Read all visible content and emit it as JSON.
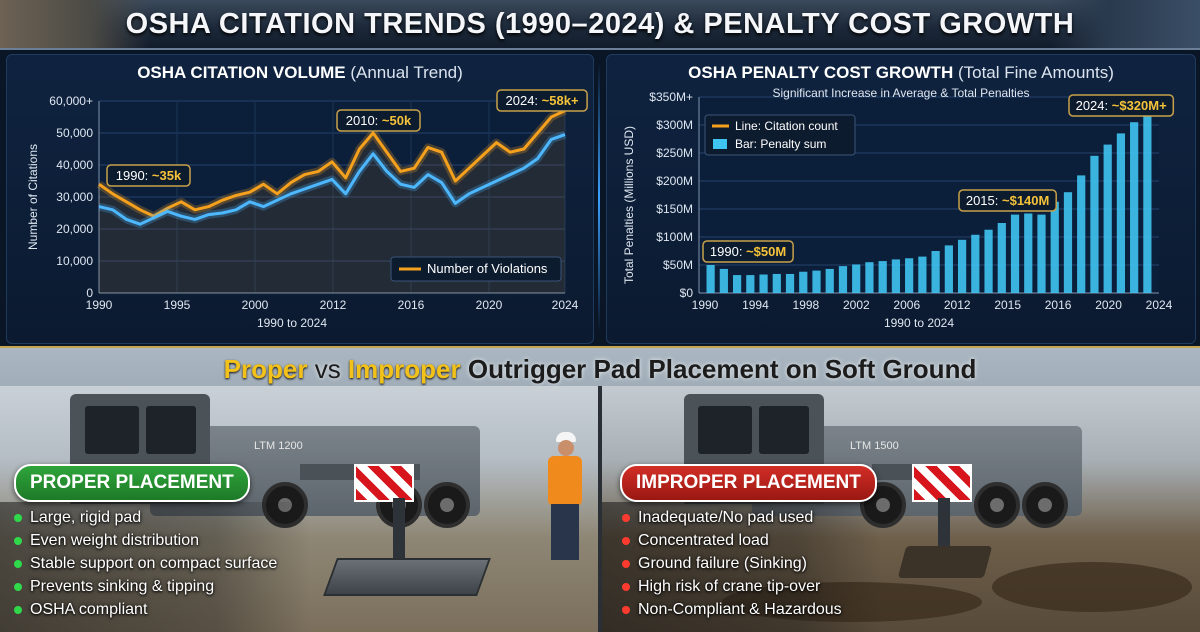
{
  "header": {
    "title": "OSHA CITATION TRENDS (1990–2024) & PENALTY COST GROWTH"
  },
  "colors": {
    "orange_line": "#f5a11e",
    "blue_line": "#4db8ff",
    "bar": "#3fc4f2",
    "proper_green": "#2fa43b",
    "improper_red": "#d22e26",
    "accent_yellow": "#f3c21a"
  },
  "left_chart": {
    "title_bold": "OSHA CITATION VOLUME",
    "title_sub": "(Annual Trend)",
    "ylabel": "Number of Citations",
    "xlabel": "1990 to 2024",
    "legend": "Number of Violations",
    "callouts": [
      "1990: ~35k",
      "2010: ~50k",
      "2024: ~58k+"
    ]
  },
  "right_chart": {
    "title_bold": "OSHA PENALTY COST GROWTH",
    "title_sub": "(Total Fine Amounts)",
    "subtitle": "Significant Increase in Average & Total Penalties",
    "ylabel": "Total Penalties (Millions USD)",
    "xlabel": "1990 to 2024",
    "legend": [
      "Line: Citation count",
      "Bar: Penalty sum"
    ],
    "callouts": [
      "1990: ~$50M",
      "2015: ~$140M",
      "2024: ~$320M+"
    ]
  },
  "chart_data": [
    {
      "type": "line",
      "title": "OSHA CITATION VOLUME (Annual Trend)",
      "xlabel": "1990 to 2024",
      "ylabel": "Number of Citations",
      "xlim": [
        1990,
        2024
      ],
      "ylim": [
        0,
        60000
      ],
      "x_ticks": [
        "1990",
        "1995",
        "2000",
        "2012",
        "2016",
        "2020",
        "2024"
      ],
      "y_ticks": [
        "0",
        "10,000",
        "20,000",
        "30,000",
        "40,000",
        "50,000",
        "60,000+"
      ],
      "grid": true,
      "legend_position": "bottom-right",
      "series": [
        {
          "name": "Number of Violations",
          "color": "#f5a11e",
          "values": [
            34000,
            31000,
            28500,
            26000,
            24000,
            26500,
            28500,
            26000,
            27000,
            29000,
            30500,
            31500,
            34000,
            31000,
            34500,
            37000,
            38000,
            41000,
            36000,
            45000,
            50000,
            44000,
            38000,
            39000,
            45500,
            44000,
            35000,
            39000,
            43000,
            47000,
            44000,
            45000,
            50000,
            55000,
            57000
          ]
        },
        {
          "color": "#4db8ff",
          "values": [
            27000,
            26000,
            23000,
            21500,
            23500,
            25500,
            24000,
            23000,
            24500,
            25000,
            26000,
            28500,
            27000,
            29000,
            31000,
            32500,
            34000,
            35500,
            31000,
            38000,
            43500,
            38000,
            34000,
            33000,
            37000,
            34500,
            28000,
            31000,
            33000,
            35000,
            37000,
            39000,
            42000,
            48000,
            49500
          ]
        }
      ]
    },
    {
      "type": "bar",
      "title": "OSHA PENALTY COST GROWTH (Total Fine Amounts)",
      "subtitle": "Significant Increase in Average & Total Penalties",
      "xlabel": "1990 to 2024",
      "ylabel": "Total Penalties (Millions USD)",
      "xlim": [
        1990,
        2024
      ],
      "ylim": [
        0,
        350
      ],
      "x_ticks": [
        "1990",
        "1994",
        "1998",
        "2002",
        "2006",
        "2012",
        "2015",
        "2016",
        "2020",
        "2024"
      ],
      "y_ticks": [
        "$0",
        "$50M",
        "$100M",
        "$150M",
        "$200M",
        "$250M",
        "$300M",
        "$350M+"
      ],
      "grid": true,
      "legend_position": "top-left",
      "series": [
        {
          "name": "Penalty sum",
          "color": "#3fc4f2",
          "values": [
            50,
            43,
            32,
            32,
            33,
            34,
            34,
            38,
            40,
            43,
            48,
            51,
            55,
            57,
            60,
            62,
            65,
            75,
            85,
            95,
            104,
            113,
            125,
            140,
            142,
            140,
            163,
            180,
            210,
            245,
            265,
            285,
            305,
            320
          ]
        }
      ]
    }
  ],
  "bottom": {
    "title_proper": "Proper",
    "title_vs": "vs",
    "title_improper": "Improper",
    "title_rest": "Outrigger Pad Placement on Soft Ground",
    "crane_label_left": "LTM 1200",
    "crane_label_right": "LTM 1500",
    "proper": {
      "badge": "PROPER PLACEMENT",
      "bullets": [
        "Large, rigid pad",
        "Even weight distribution",
        "Stable support on compact surface",
        "Prevents sinking & tipping",
        "OSHA compliant"
      ]
    },
    "improper": {
      "badge": "IMPROPER PLACEMENT",
      "bullets": [
        "Inadequate/No pad used",
        "Concentrated load",
        "Ground failure (Sinking)",
        "High risk of crane tip-over",
        "Non-Compliant & Hazardous"
      ]
    }
  }
}
